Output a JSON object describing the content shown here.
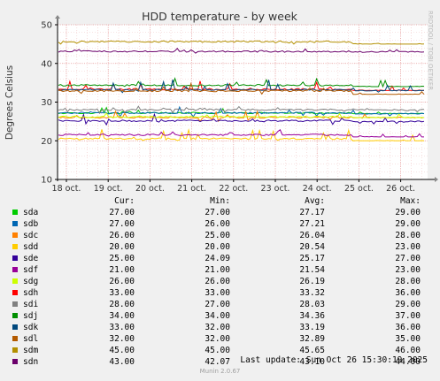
{
  "chart_data": {
    "type": "line",
    "title": "HDD temperature - by week",
    "ylabel": "Degrees Celsius",
    "side_label": "RRDTOOL / TOBI OETIKER",
    "ylim": [
      10,
      50
    ],
    "yticks": [
      10,
      20,
      30,
      40,
      50
    ],
    "x_tick_labels": [
      "18 oct.",
      "19 oct.",
      "20 oct.",
      "21 oct.",
      "22 oct.",
      "23 oct.",
      "24 oct.",
      "25 oct.",
      "26 oct."
    ],
    "grid": true,
    "legend_headers": {
      "cur": "Cur:",
      "min": "Min:",
      "avg": "Avg:",
      "max": "Max:"
    },
    "series": [
      {
        "name": "sda",
        "color": "#00cc00",
        "cur": "27.00",
        "min": "27.00",
        "avg": "27.17",
        "max": "29.00"
      },
      {
        "name": "sdb",
        "color": "#0066b3",
        "cur": "27.00",
        "min": "26.00",
        "avg": "27.21",
        "max": "29.00"
      },
      {
        "name": "sdc",
        "color": "#ff8000",
        "cur": "26.00",
        "min": "25.00",
        "avg": "26.04",
        "max": "28.00"
      },
      {
        "name": "sdd",
        "color": "#ffcc00",
        "cur": "20.00",
        "min": "20.00",
        "avg": "20.54",
        "max": "23.00"
      },
      {
        "name": "sde",
        "color": "#330099",
        "cur": "25.00",
        "min": "24.09",
        "avg": "25.17",
        "max": "27.00"
      },
      {
        "name": "sdf",
        "color": "#990099",
        "cur": "21.00",
        "min": "21.00",
        "avg": "21.54",
        "max": "23.00"
      },
      {
        "name": "sdg",
        "color": "#ccff00",
        "cur": "26.00",
        "min": "26.00",
        "avg": "26.19",
        "max": "28.00"
      },
      {
        "name": "sdh",
        "color": "#ff0000",
        "cur": "33.00",
        "min": "33.00",
        "avg": "33.32",
        "max": "36.00"
      },
      {
        "name": "sdi",
        "color": "#808080",
        "cur": "28.00",
        "min": "27.00",
        "avg": "28.03",
        "max": "29.00"
      },
      {
        "name": "sdj",
        "color": "#008f00",
        "cur": "34.00",
        "min": "34.00",
        "avg": "34.36",
        "max": "37.00"
      },
      {
        "name": "sdk",
        "color": "#00487d",
        "cur": "33.00",
        "min": "32.00",
        "avg": "33.19",
        "max": "36.00"
      },
      {
        "name": "sdl",
        "color": "#b35a00",
        "cur": "32.00",
        "min": "32.00",
        "avg": "32.89",
        "max": "35.00"
      },
      {
        "name": "sdm",
        "color": "#b38f00",
        "cur": "45.00",
        "min": "45.00",
        "avg": "45.65",
        "max": "46.00"
      },
      {
        "name": "sdn",
        "color": "#6b006b",
        "cur": "43.00",
        "min": "42.07",
        "avg": "43.10",
        "max": "44.00"
      }
    ],
    "last_update": "Last update:  Sun Oct 26 15:30:19 2025",
    "footer": "Munin 2.0.67"
  }
}
